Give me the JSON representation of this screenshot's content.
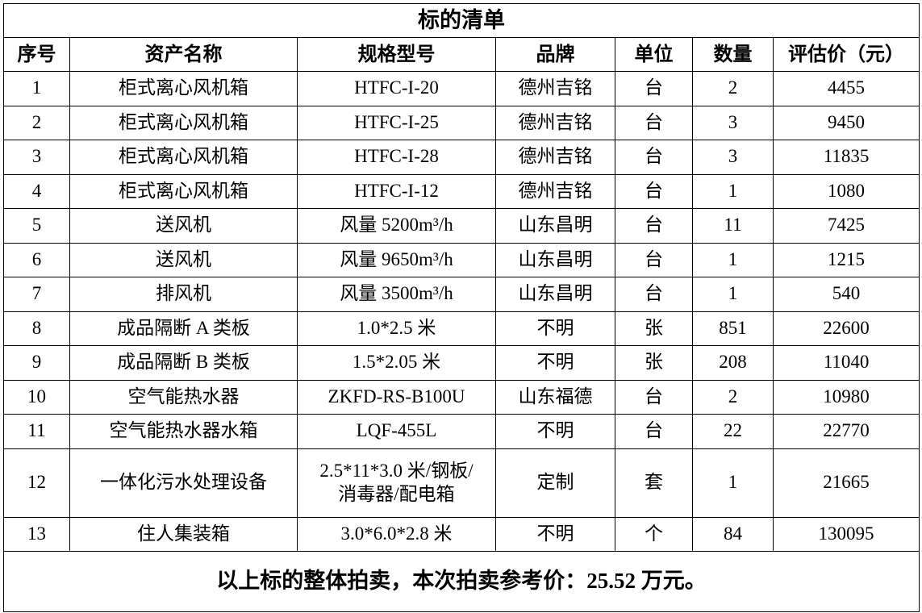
{
  "title": "标的清单",
  "columns": [
    "序号",
    "资产名称",
    "规格型号",
    "品牌",
    "单位",
    "数量",
    "评估价（元）"
  ],
  "rows": [
    [
      "1",
      "柜式离心风机箱",
      "HTFC-I-20",
      "德州吉铭",
      "台",
      "2",
      "4455"
    ],
    [
      "2",
      "柜式离心风机箱",
      "HTFC-I-25",
      "德州吉铭",
      "台",
      "3",
      "9450"
    ],
    [
      "3",
      "柜式离心风机箱",
      "HTFC-I-28",
      "德州吉铭",
      "台",
      "3",
      "11835"
    ],
    [
      "4",
      "柜式离心风机箱",
      "HTFC-I-12",
      "德州吉铭",
      "台",
      "1",
      "1080"
    ],
    [
      "5",
      "送风机",
      "风量 5200m³/h",
      "山东昌明",
      "台",
      "11",
      "7425"
    ],
    [
      "6",
      "送风机",
      "风量 9650m³/h",
      "山东昌明",
      "台",
      "1",
      "1215"
    ],
    [
      "7",
      "排风机",
      "风量 3500m³/h",
      "山东昌明",
      "台",
      "1",
      "540"
    ],
    [
      "8",
      "成品隔断 A 类板",
      "1.0*2.5 米",
      "不明",
      "张",
      "851",
      "22600"
    ],
    [
      "9",
      "成品隔断 B 类板",
      "1.5*2.05 米",
      "不明",
      "张",
      "208",
      "11040"
    ],
    [
      "10",
      "空气能热水器",
      "ZKFD-RS-B100U",
      "山东福德",
      "台",
      "2",
      "10980"
    ],
    [
      "11",
      "空气能热水器水箱",
      "LQF-455L",
      "不明",
      "台",
      "22",
      "22770"
    ],
    [
      "12",
      "一体化污水处理设备",
      "2.5*11*3.0 米/钢板/\n消毒器/配电箱",
      "定制",
      "套",
      "1",
      "21665"
    ],
    [
      "13",
      "住人集装箱",
      "3.0*6.0*2.8 米",
      "不明",
      "个",
      "84",
      "130095"
    ]
  ],
  "footer": "以上标的整体拍卖，本次拍卖参考价：25.52 万元。"
}
